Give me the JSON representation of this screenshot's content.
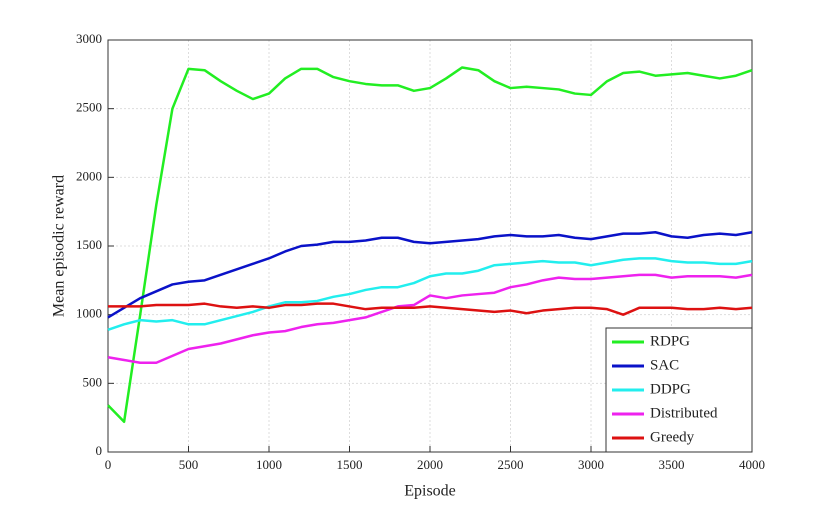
{
  "chart_data": {
    "type": "line",
    "xlabel": "Episode",
    "ylabel": "Mean episodic reward",
    "x": [
      0,
      100,
      200,
      300,
      400,
      500,
      600,
      700,
      800,
      900,
      1000,
      1100,
      1200,
      1300,
      1400,
      1500,
      1600,
      1700,
      1800,
      1900,
      2000,
      2100,
      2200,
      2300,
      2400,
      2500,
      2600,
      2700,
      2800,
      2900,
      3000,
      3100,
      3200,
      3300,
      3400,
      3500,
      3600,
      3700,
      3800,
      3900,
      4000
    ],
    "series": [
      {
        "name": "RDPG",
        "color": "#22ee22",
        "values": [
          340,
          220,
          1000,
          1800,
          2500,
          2790,
          2780,
          2700,
          2630,
          2570,
          2610,
          2720,
          2790,
          2790,
          2730,
          2700,
          2680,
          2670,
          2670,
          2630,
          2650,
          2720,
          2800,
          2780,
          2700,
          2650,
          2660,
          2650,
          2640,
          2610,
          2600,
          2700,
          2760,
          2770,
          2740,
          2750,
          2760,
          2740,
          2720,
          2740,
          2780
        ]
      },
      {
        "name": "SAC",
        "color": "#0a12c8",
        "values": [
          980,
          1050,
          1120,
          1170,
          1220,
          1240,
          1250,
          1290,
          1330,
          1370,
          1410,
          1460,
          1500,
          1510,
          1530,
          1530,
          1540,
          1560,
          1560,
          1530,
          1520,
          1530,
          1540,
          1550,
          1570,
          1580,
          1570,
          1570,
          1580,
          1560,
          1550,
          1570,
          1590,
          1590,
          1600,
          1570,
          1560,
          1580,
          1590,
          1580,
          1600
        ]
      },
      {
        "name": "DDPG",
        "color": "#22eeee",
        "values": [
          890,
          930,
          960,
          950,
          960,
          930,
          930,
          960,
          990,
          1020,
          1060,
          1090,
          1090,
          1100,
          1130,
          1150,
          1180,
          1200,
          1200,
          1230,
          1280,
          1300,
          1300,
          1320,
          1360,
          1370,
          1380,
          1390,
          1380,
          1380,
          1360,
          1380,
          1400,
          1410,
          1410,
          1390,
          1380,
          1380,
          1370,
          1370,
          1390
        ]
      },
      {
        "name": "Distributed",
        "color": "#ee22ee",
        "values": [
          690,
          670,
          650,
          650,
          700,
          750,
          770,
          790,
          820,
          850,
          870,
          880,
          910,
          930,
          940,
          960,
          980,
          1020,
          1060,
          1070,
          1140,
          1120,
          1140,
          1150,
          1160,
          1200,
          1220,
          1250,
          1270,
          1260,
          1260,
          1270,
          1280,
          1290,
          1290,
          1270,
          1280,
          1280,
          1280,
          1270,
          1290
        ]
      },
      {
        "name": "Greedy",
        "color": "#dd1111",
        "values": [
          1060,
          1060,
          1060,
          1070,
          1070,
          1070,
          1080,
          1060,
          1050,
          1060,
          1050,
          1070,
          1070,
          1080,
          1080,
          1060,
          1040,
          1050,
          1050,
          1050,
          1060,
          1050,
          1040,
          1030,
          1020,
          1030,
          1010,
          1030,
          1040,
          1050,
          1050,
          1040,
          1000,
          1050,
          1050,
          1050,
          1040,
          1040,
          1050,
          1040,
          1050
        ]
      }
    ],
    "xlim": [
      0,
      4000
    ],
    "xticks": [
      0,
      500,
      1000,
      1500,
      2000,
      2500,
      3000,
      3500,
      4000
    ],
    "ylim": [
      0,
      3000
    ],
    "yticks": [
      0,
      500,
      1000,
      1500,
      2000,
      2500,
      3000
    ],
    "grid": true,
    "legend": "lower right"
  }
}
